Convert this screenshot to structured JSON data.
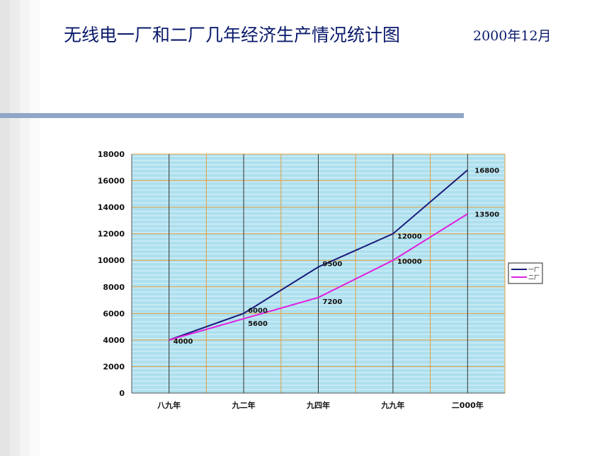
{
  "slide": {
    "title": "无线电一厂和二厂几年经济生产情况统计图",
    "date": "2000年12月"
  },
  "colors": {
    "title": "#0a1a6b",
    "rule": "#8fa7c6",
    "plot_background": "#aee0ef",
    "series_1": "#1a1a7a",
    "series_2": "#e020e0"
  },
  "chart_data": {
    "type": "line",
    "categories": [
      "八九年",
      "九二年",
      "九四年",
      "九九年",
      "二000年"
    ],
    "series": [
      {
        "name": "一厂",
        "values": [
          4000,
          6000,
          9500,
          12000,
          16800
        ],
        "color": "#1a1a7a"
      },
      {
        "name": "二厂",
        "values": [
          4000,
          5600,
          7200,
          10000,
          13500
        ],
        "color": "#e020e0"
      }
    ],
    "data_labels": [
      {
        "series": 0,
        "index": 0,
        "text": "4000"
      },
      {
        "series": 0,
        "index": 1,
        "text": "6000"
      },
      {
        "series": 1,
        "index": 1,
        "text": "5600"
      },
      {
        "series": 0,
        "index": 2,
        "text": "9500"
      },
      {
        "series": 1,
        "index": 2,
        "text": "7200"
      },
      {
        "series": 0,
        "index": 3,
        "text": "12000"
      },
      {
        "series": 1,
        "index": 3,
        "text": "10000"
      },
      {
        "series": 0,
        "index": 4,
        "text": "16800"
      },
      {
        "series": 1,
        "index": 4,
        "text": "13500"
      }
    ],
    "yticks": [
      "0",
      "2000",
      "4000",
      "6000",
      "8000",
      "10000",
      "12000",
      "14000",
      "16000",
      "18000"
    ],
    "ylim": [
      0,
      18000
    ],
    "grid": true,
    "legend_placement": "right"
  }
}
